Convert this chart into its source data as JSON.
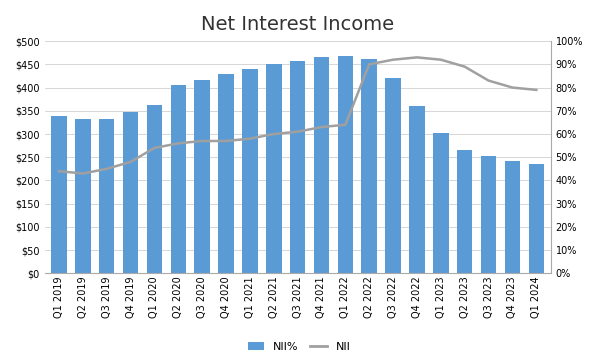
{
  "title": "Net Interest Income",
  "categories": [
    "Q1 2019",
    "Q2 2019",
    "Q3 2019",
    "Q4 2019",
    "Q1 2020",
    "Q2 2020",
    "Q3 2020",
    "Q4 2020",
    "Q1 2021",
    "Q2 2021",
    "Q3 2021",
    "Q4 2021",
    "Q1 2022",
    "Q2 2022",
    "Q3 2022",
    "Q4 2022",
    "Q1 2023",
    "Q2 2023",
    "Q3 2023",
    "Q4 2023",
    "Q1 2024"
  ],
  "nii_dollars": [
    338,
    332,
    332,
    347,
    363,
    405,
    416,
    430,
    440,
    450,
    457,
    465,
    468,
    462,
    420,
    360,
    302,
    265,
    252,
    242,
    235
  ],
  "nii_pct": [
    44,
    43,
    45,
    48,
    54,
    56,
    57,
    57,
    58,
    60,
    61,
    63,
    64,
    90,
    92,
    93,
    92,
    89,
    83,
    80,
    79
  ],
  "bar_color": "#5B9BD5",
  "line_color": "#A0A0A0",
  "ylim_left": [
    0,
    500
  ],
  "ylim_right": [
    0,
    100
  ],
  "yticks_left": [
    0,
    50,
    100,
    150,
    200,
    250,
    300,
    350,
    400,
    450,
    500
  ],
  "yticks_right": [
    0,
    10,
    20,
    30,
    40,
    50,
    60,
    70,
    80,
    90,
    100
  ],
  "title_fontsize": 14,
  "tick_fontsize": 7,
  "legend_labels": [
    "NII%",
    "NII"
  ],
  "background_color": "#ffffff",
  "grid_color": "#d0d0d0"
}
